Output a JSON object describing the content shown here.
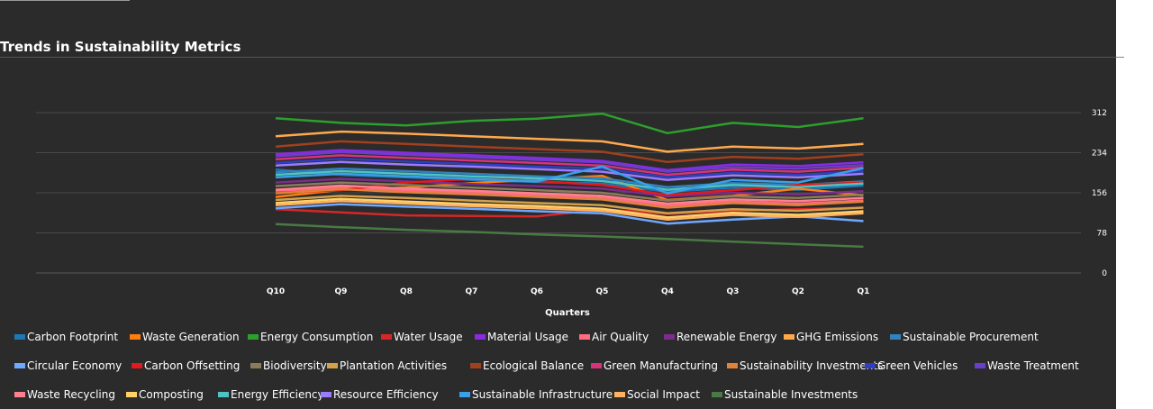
{
  "chart_data": {
    "type": "line",
    "title": "Trends in Sustainability Metrics",
    "xlabel": "Quarters",
    "ylabel": "",
    "x": [
      "Q10",
      "Q9",
      "Q8",
      "Q7",
      "Q6",
      "Q5",
      "Q4",
      "Q3",
      "Q2",
      "Q1"
    ],
    "ylim": [
      0,
      312
    ],
    "yticks": [
      0,
      78,
      156,
      234,
      312
    ],
    "grid": true,
    "legend_position": "bottom",
    "series": [
      {
        "name": "Carbon Footprint",
        "color": "#1f77b4",
        "values": [
          201,
          191,
          186,
          181,
          177,
          174,
          158,
          166,
          162,
          170
        ]
      },
      {
        "name": "Waste Generation",
        "color": "#ff7f0e",
        "values": [
          148,
          162,
          166,
          175,
          182,
          189,
          142,
          150,
          164,
          151
        ]
      },
      {
        "name": "Energy Consumption",
        "color": "#2ca02c",
        "values": [
          301,
          292,
          287,
          296,
          300,
          310,
          272,
          292,
          284,
          301
        ]
      },
      {
        "name": "Water Usage",
        "color": "#d62728",
        "values": [
          124,
          118,
          112,
          111,
          110,
          124,
          115,
          121,
          124,
          127
        ]
      },
      {
        "name": "Material Usage",
        "color": "#8a2be2",
        "values": [
          231,
          239,
          234,
          229,
          224,
          218,
          200,
          211,
          208,
          215
        ]
      },
      {
        "name": "Air Quality",
        "color": "#ff6b81",
        "values": [
          159,
          166,
          161,
          156,
          151,
          146,
          131,
          139,
          135,
          141
        ]
      },
      {
        "name": "Renewable Energy",
        "color": "#7b2d8e",
        "values": [
          176,
          183,
          178,
          173,
          169,
          164,
          149,
          156,
          153,
          159
        ]
      },
      {
        "name": "GHG Emissions",
        "color": "#ffa94d",
        "values": [
          266,
          275,
          271,
          266,
          261,
          256,
          236,
          246,
          242,
          251
        ]
      },
      {
        "name": "Sustainable Procurement",
        "color": "#3182bd",
        "values": [
          196,
          203,
          198,
          193,
          188,
          184,
          167,
          175,
          171,
          178
        ]
      },
      {
        "name": "Circular Economy",
        "color": "#6fa8ff",
        "values": [
          126,
          134,
          129,
          125,
          120,
          116,
          96,
          104,
          110,
          101
        ]
      },
      {
        "name": "Carbon Offsetting",
        "color": "#e31a1c",
        "values": [
          156,
          161,
          176,
          183,
          179,
          171,
          152,
          161,
          171,
          176
        ]
      },
      {
        "name": "Biodiversity",
        "color": "#8c7b5a",
        "values": [
          169,
          176,
          171,
          166,
          161,
          156,
          141,
          149,
          146,
          152
        ]
      },
      {
        "name": "Plantation Activities",
        "color": "#d4a04a",
        "values": [
          142,
          150,
          146,
          141,
          136,
          132,
          116,
          124,
          121,
          127
        ]
      },
      {
        "name": "Ecological Balance",
        "color": "#a0401e",
        "values": [
          246,
          256,
          251,
          246,
          241,
          236,
          216,
          226,
          222,
          231
        ]
      },
      {
        "name": "Green Manufacturing",
        "color": "#d6337a",
        "values": [
          221,
          229,
          224,
          219,
          214,
          209,
          191,
          201,
          197,
          205
        ]
      },
      {
        "name": "Sustainability Investments",
        "color": "#e0823a",
        "values": [
          155,
          163,
          157,
          153,
          148,
          143,
          127,
          136,
          132,
          139
        ]
      },
      {
        "name": "Green Vehicles",
        "color": "#2f3fbf",
        "values": [
          214,
          222,
          217,
          212,
          207,
          203,
          186,
          195,
          191,
          198
        ]
      },
      {
        "name": "Waste Treatment",
        "color": "#6a3fc9",
        "values": [
          227,
          235,
          230,
          225,
          220,
          215,
          197,
          206,
          203,
          210
        ]
      },
      {
        "name": "Waste Recycling",
        "color": "#ff8090",
        "values": [
          162,
          170,
          164,
          160,
          155,
          150,
          135,
          143,
          140,
          146
        ]
      },
      {
        "name": "Composting",
        "color": "#ffd166",
        "values": [
          136,
          144,
          139,
          134,
          130,
          125,
          108,
          117,
          113,
          120
        ]
      },
      {
        "name": "Energy Efficiency",
        "color": "#4fc3c3",
        "values": [
          191,
          198,
          193,
          188,
          184,
          179,
          162,
          171,
          167,
          174
        ]
      },
      {
        "name": "Resource Efficiency",
        "color": "#9b7bff",
        "values": [
          209,
          216,
          211,
          207,
          202,
          197,
          181,
          190,
          186,
          193
        ]
      },
      {
        "name": "Sustainable Infrastructure",
        "color": "#3aa0e8",
        "values": [
          186,
          193,
          188,
          183,
          178,
          207,
          155,
          181,
          176,
          204
        ]
      },
      {
        "name": "Social Impact",
        "color": "#ffb060",
        "values": [
          132,
          140,
          135,
          130,
          126,
          121,
          104,
          113,
          109,
          116
        ]
      },
      {
        "name": "Sustainable Investments",
        "color": "#4a7a44",
        "values": [
          95,
          89,
          84,
          80,
          75,
          71,
          66,
          61,
          56,
          51
        ]
      }
    ]
  }
}
